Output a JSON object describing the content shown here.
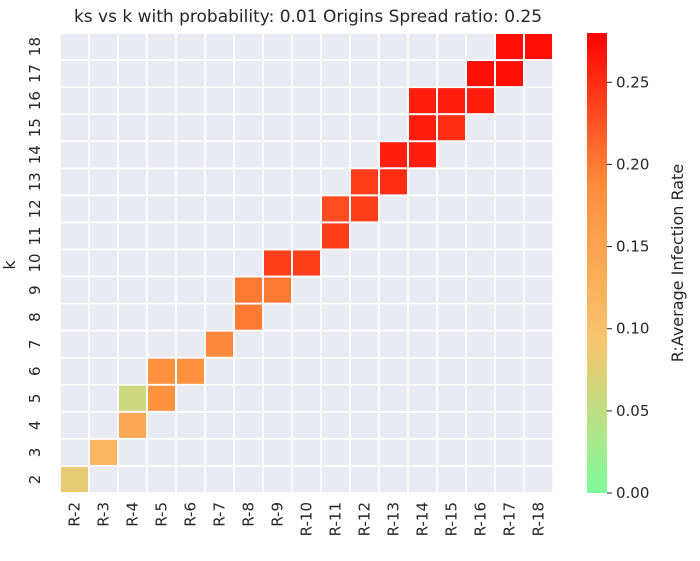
{
  "chart_data": {
    "type": "heatmap",
    "title": "ks vs k with probability: 0.01 Origins Spread ratio: 0.25",
    "xlabel": "",
    "ylabel": "k",
    "x_categories": [
      "R-2",
      "R-3",
      "R-4",
      "R-5",
      "R-6",
      "R-7",
      "R-8",
      "R-9",
      "R-10",
      "R-11",
      "R-12",
      "R-13",
      "R-14",
      "R-15",
      "R-16",
      "R-17",
      "R-18"
    ],
    "y_categories": [
      "2",
      "3",
      "4",
      "5",
      "6",
      "7",
      "8",
      "9",
      "10",
      "11",
      "12",
      "13",
      "14",
      "15",
      "16",
      "17",
      "18"
    ],
    "cells": [
      {
        "x": "R-2",
        "y": "2",
        "value": 0.08
      },
      {
        "x": "R-3",
        "y": "3",
        "value": 0.12
      },
      {
        "x": "R-4",
        "y": "4",
        "value": 0.14
      },
      {
        "x": "R-4",
        "y": "5",
        "value": 0.06
      },
      {
        "x": "R-5",
        "y": "5",
        "value": 0.18
      },
      {
        "x": "R-5",
        "y": "6",
        "value": 0.18
      },
      {
        "x": "R-6",
        "y": "6",
        "value": 0.18
      },
      {
        "x": "R-7",
        "y": "7",
        "value": 0.19
      },
      {
        "x": "R-8",
        "y": "8",
        "value": 0.2
      },
      {
        "x": "R-8",
        "y": "9",
        "value": 0.2
      },
      {
        "x": "R-9",
        "y": "9",
        "value": 0.2
      },
      {
        "x": "R-9",
        "y": "10",
        "value": 0.24
      },
      {
        "x": "R-10",
        "y": "10",
        "value": 0.24
      },
      {
        "x": "R-11",
        "y": "11",
        "value": 0.24
      },
      {
        "x": "R-11",
        "y": "12",
        "value": 0.23
      },
      {
        "x": "R-12",
        "y": "12",
        "value": 0.24
      },
      {
        "x": "R-12",
        "y": "13",
        "value": 0.24
      },
      {
        "x": "R-13",
        "y": "13",
        "value": 0.25
      },
      {
        "x": "R-13",
        "y": "14",
        "value": 0.26
      },
      {
        "x": "R-14",
        "y": "14",
        "value": 0.26
      },
      {
        "x": "R-14",
        "y": "15",
        "value": 0.26
      },
      {
        "x": "R-15",
        "y": "15",
        "value": 0.25
      },
      {
        "x": "R-14",
        "y": "16",
        "value": 0.26
      },
      {
        "x": "R-15",
        "y": "16",
        "value": 0.26
      },
      {
        "x": "R-16",
        "y": "16",
        "value": 0.26
      },
      {
        "x": "R-16",
        "y": "17",
        "value": 0.27
      },
      {
        "x": "R-17",
        "y": "17",
        "value": 0.27
      },
      {
        "x": "R-17",
        "y": "18",
        "value": 0.27
      },
      {
        "x": "R-18",
        "y": "18",
        "value": 0.27
      }
    ],
    "colorbar": {
      "label": "R:Average Infection Rate",
      "ticks": [
        "0.00",
        "0.05",
        "0.10",
        "0.15",
        "0.20",
        "0.25"
      ],
      "range": [
        0,
        0.28
      ],
      "colors": [
        "#7ffb9c",
        "#f8c46c",
        "#fe8e3c",
        "#ff0000"
      ]
    },
    "grid": true
  }
}
